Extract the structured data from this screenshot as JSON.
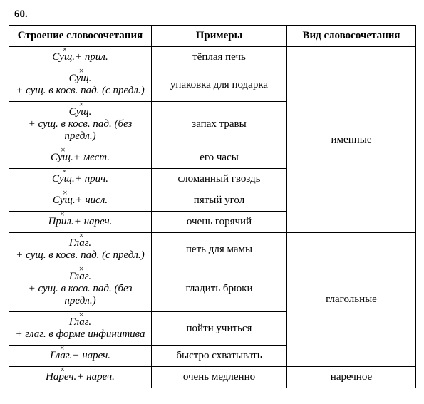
{
  "page_number": "60.",
  "headers": {
    "structure": "Строение словосочетания",
    "examples": "Примеры",
    "kind": "Вид словосочетания"
  },
  "groups": [
    {
      "kind": "именные",
      "rows": [
        {
          "parts": [
            {
              "text": "Сущ.",
              "mark": "x"
            },
            {
              "text": " + прил."
            }
          ],
          "example": "тёплая печь"
        },
        {
          "parts": [
            {
              "text": "Сущ.",
              "mark": "x"
            },
            {
              "text": " + сущ. в косв. пад. (с предл.)"
            }
          ],
          "example": "упаковка для подарка"
        },
        {
          "parts": [
            {
              "text": "Сущ.",
              "mark": "x"
            },
            {
              "text": " + сущ. в косв. пад. (без предл.)"
            }
          ],
          "example": "запах травы"
        },
        {
          "parts": [
            {
              "text": "Сущ.",
              "mark": "x"
            },
            {
              "text": " + мест."
            }
          ],
          "example": "его часы"
        },
        {
          "parts": [
            {
              "text": "Сущ.",
              "mark": "x"
            },
            {
              "text": " + прич."
            }
          ],
          "example": "сломанный гвоздь"
        },
        {
          "parts": [
            {
              "text": "Сущ.",
              "mark": "x"
            },
            {
              "text": " + числ."
            }
          ],
          "example": "пятый угол"
        },
        {
          "parts": [
            {
              "text": "Прил.",
              "mark": "x"
            },
            {
              "text": " + нареч."
            }
          ],
          "example": "очень горячий"
        }
      ]
    },
    {
      "kind": "глагольные",
      "rows": [
        {
          "parts": [
            {
              "text": "Глаг.",
              "mark": "x"
            },
            {
              "text": " + сущ. в косв. пад. (с предл.)"
            }
          ],
          "example": "петь для мамы"
        },
        {
          "parts": [
            {
              "text": "Глаг.",
              "mark": "x"
            },
            {
              "text": " + сущ. в косв. пад. (без предл.)"
            }
          ],
          "example": "гладить брюки"
        },
        {
          "parts": [
            {
              "text": "Глаг.",
              "mark": "x"
            },
            {
              "text": " + глаг. в форме инфинитива"
            }
          ],
          "example": "пойти учиться"
        },
        {
          "parts": [
            {
              "text": "Глаг.",
              "mark": "x"
            },
            {
              "text": " + нареч."
            }
          ],
          "example": "быстро схватывать"
        }
      ]
    },
    {
      "kind": "наречное",
      "rows": [
        {
          "parts": [
            {
              "text": "Нареч.",
              "mark": "x"
            },
            {
              "text": " + нареч."
            }
          ],
          "example": "очень медленно"
        }
      ]
    }
  ]
}
